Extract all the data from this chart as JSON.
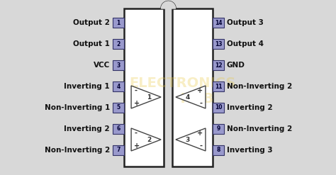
{
  "bg_color": "#d8d8d8",
  "ic_body_color": "#ffffff",
  "ic_body_border": "#222222",
  "pin_box_color": "#9999cc",
  "pin_box_border": "#333366",
  "triangle_color": "#ffffff",
  "triangle_border": "#444444",
  "text_color": "#111111",
  "pin_text_color": "#000033",
  "left_pins": [
    {
      "num": 1,
      "label": "Output 2"
    },
    {
      "num": 2,
      "label": "Output 1"
    },
    {
      "num": 3,
      "label": "VCC"
    },
    {
      "num": 4,
      "label": "Inverting 1"
    },
    {
      "num": 5,
      "label": "Non-Inverting 1"
    },
    {
      "num": 6,
      "label": "Inverting 2"
    },
    {
      "num": 7,
      "label": "Non-Inverting 2"
    }
  ],
  "right_pins": [
    {
      "num": 14,
      "label": "Output 3"
    },
    {
      "num": 13,
      "label": "Output 4"
    },
    {
      "num": 12,
      "label": "GND"
    },
    {
      "num": 11,
      "label": "Non-Inverting 2"
    },
    {
      "num": 10,
      "label": "Inverting 2"
    },
    {
      "num": 9,
      "label": "Non-Inverting 2"
    },
    {
      "num": 8,
      "label": "Inverting 3"
    }
  ],
  "watermark_color": "#e8c840",
  "watermark_alpha": 0.3,
  "figsize": [
    4.74,
    2.47
  ],
  "dpi": 100
}
